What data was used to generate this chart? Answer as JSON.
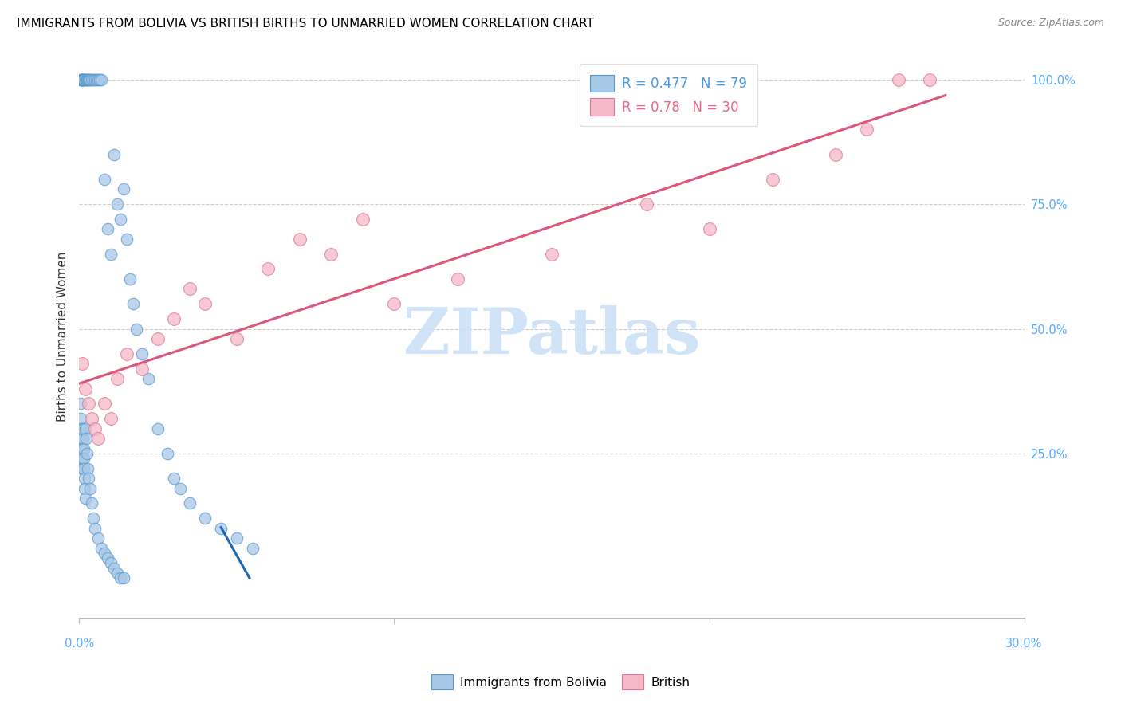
{
  "title": "IMMIGRANTS FROM BOLIVIA VS BRITISH BIRTHS TO UNMARRIED WOMEN CORRELATION CHART",
  "source": "Source: ZipAtlas.com",
  "ylabel": "Births to Unmarried Women",
  "R1": 0.477,
  "N1": 79,
  "R2": 0.78,
  "N2": 30,
  "blue_fill": "#a8c8e8",
  "blue_edge": "#5599cc",
  "pink_fill": "#f5b8c8",
  "pink_edge": "#dd7799",
  "blue_line_color": "#2266bb",
  "pink_line_color": "#dd5577",
  "legend_text_blue": "#4499ee",
  "legend_text_pink": "#ee6688",
  "right_tick_color": "#55aaff",
  "watermark_color": "#cce0f5",
  "blue_x": [
    0.05,
    0.06,
    0.07,
    0.08,
    0.09,
    0.1,
    0.11,
    0.12,
    0.13,
    0.15,
    0.2,
    0.22,
    0.25,
    0.28,
    0.3,
    0.32,
    0.35,
    0.4,
    0.45,
    0.5,
    0.55,
    0.6,
    0.65,
    0.7,
    0.8,
    0.9,
    1.0,
    1.1,
    1.2,
    1.3,
    1.4,
    1.5,
    1.6,
    1.7,
    1.8,
    2.0,
    2.2,
    2.5,
    2.8,
    3.0,
    3.2,
    3.5,
    4.0,
    4.5,
    5.0,
    5.5,
    0.05,
    0.05,
    0.06,
    0.07,
    0.08,
    0.09,
    0.1,
    0.11,
    0.12,
    0.13,
    0.14,
    0.15,
    0.16,
    0.17,
    0.18,
    0.2,
    0.22,
    0.25,
    0.28,
    0.3,
    0.35,
    0.4,
    0.45,
    0.5,
    0.6,
    0.7,
    0.8,
    0.9,
    1.0,
    1.1,
    1.2,
    1.3,
    1.4
  ],
  "blue_y": [
    100,
    100,
    100,
    100,
    100,
    100,
    100,
    100,
    100,
    100,
    100,
    100,
    100,
    100,
    100,
    100,
    100,
    100,
    100,
    100,
    100,
    100,
    100,
    100,
    80,
    70,
    65,
    85,
    75,
    72,
    78,
    68,
    60,
    55,
    50,
    45,
    40,
    30,
    25,
    20,
    18,
    15,
    12,
    10,
    8,
    6,
    35,
    32,
    30,
    28,
    26,
    24,
    22,
    28,
    30,
    26,
    24,
    22,
    20,
    18,
    16,
    30,
    28,
    25,
    22,
    20,
    18,
    15,
    12,
    10,
    8,
    6,
    5,
    4,
    3,
    2,
    1,
    0,
    0
  ],
  "pink_x": [
    0.1,
    0.2,
    0.3,
    0.4,
    0.5,
    0.6,
    0.8,
    1.0,
    1.2,
    1.5,
    2.0,
    2.5,
    3.0,
    3.5,
    4.0,
    5.0,
    6.0,
    7.0,
    8.0,
    9.0,
    10.0,
    12.0,
    15.0,
    18.0,
    20.0,
    22.0,
    24.0,
    25.0,
    26.0,
    27.0
  ],
  "pink_y": [
    43,
    38,
    35,
    32,
    30,
    28,
    35,
    32,
    40,
    45,
    42,
    48,
    52,
    58,
    55,
    48,
    62,
    68,
    65,
    72,
    55,
    60,
    65,
    75,
    70,
    80,
    85,
    90,
    100,
    100
  ]
}
